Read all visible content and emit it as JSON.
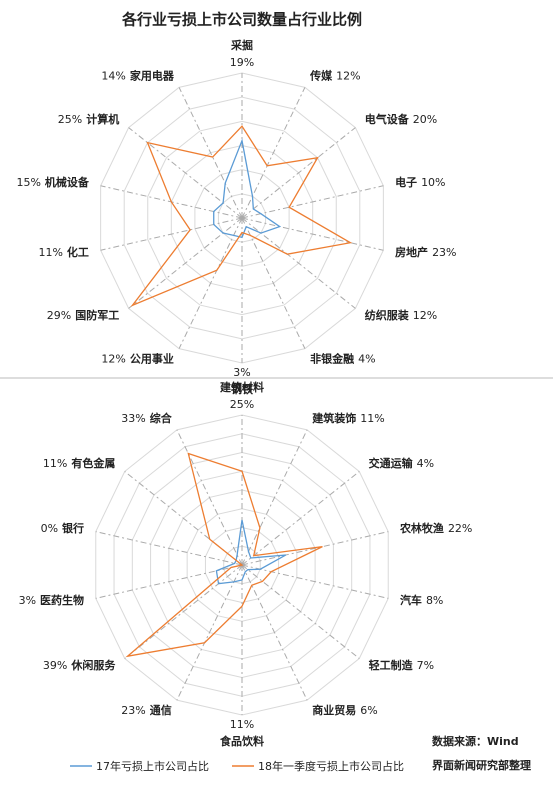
{
  "title": "各行业亏损上市公司数量占行业比例",
  "source": [
    "数据来源：Wind",
    "界面新闻研究部整理"
  ],
  "chart_data": [
    {
      "type": "radar",
      "categories": [
        "采掘",
        "传媒",
        "电气设备",
        "电子",
        "房地产",
        "纺织服装",
        "非银金融",
        "钢铁",
        "公用事业",
        "国防军工",
        "化工",
        "机械设备",
        "计算机",
        "家用电器"
      ],
      "rlim": [
        0,
        30
      ],
      "rticks": [
        5,
        10,
        15,
        20,
        25,
        30
      ],
      "series": [
        {
          "name": "17年亏损上市公司占比",
          "color": "#5b9bd5",
          "values": [
            16,
            5,
            3,
            4,
            8,
            5,
            2,
            4,
            4,
            5,
            6,
            6,
            5,
            8
          ]
        },
        {
          "name": "18年一季度亏损上市公司占比",
          "color": "#ed7d31",
          "values": [
            19,
            12,
            20,
            10,
            23,
            12,
            4,
            3,
            12,
            29,
            11,
            15,
            25,
            14
          ],
          "value_labels": [
            "19%",
            "12%",
            "20%",
            "10%",
            "23%",
            "12%",
            "4%",
            "3%",
            "12%",
            "29%",
            "11%",
            "15%",
            "25%",
            "14%"
          ]
        }
      ]
    },
    {
      "type": "radar",
      "categories": [
        "建筑材料",
        "建筑装饰",
        "交通运输",
        "农林牧渔",
        "汽车",
        "轻工制造",
        "商业贸易",
        "食品饮料",
        "通信",
        "休闲服务",
        "医药生物",
        "银行",
        "有色金属",
        "综合"
      ],
      "rlim": [
        0,
        40
      ],
      "rticks": [
        5,
        10,
        15,
        20,
        25,
        30,
        35,
        40
      ],
      "series": [
        {
          "color": "#5b9bd5",
          "values": [
            12,
            4,
            3,
            12,
            5,
            2,
            2,
            4,
            5,
            8,
            7,
            2,
            2,
            3
          ]
        },
        {
          "color": "#ed7d31",
          "values": [
            25,
            11,
            4,
            22,
            8,
            7,
            6,
            11,
            23,
            39,
            3,
            0,
            11,
            33
          ],
          "value_labels": [
            "25%",
            "11%",
            "4%",
            "22%",
            "8%",
            "7%",
            "6%",
            "11%",
            "23%",
            "39%",
            "3%",
            "0%",
            "11%",
            "33%"
          ]
        }
      ]
    }
  ]
}
